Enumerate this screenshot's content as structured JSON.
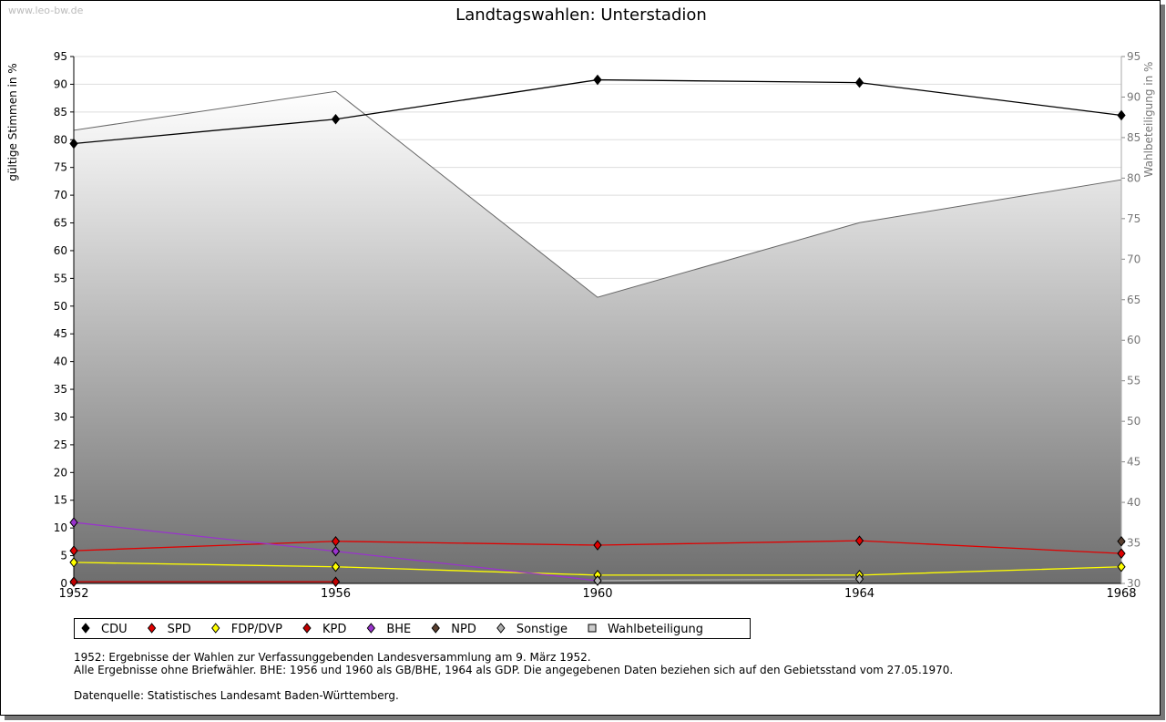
{
  "watermark": "www.leo-bw.de",
  "notes": [
    "1952: Ergebnisse der Wahlen zur Verfassunggebenden Landesversammlung am 9. März 1952.",
    "Alle Ergebnisse ohne Briefwähler. BHE: 1956 und 1960 als GB/BHE, 1964 als GDP. Die angegebenen Daten beziehen sich auf den Gebietsstand vom 27.05.1970.",
    "Datenquelle: Statistisches Landesamt Baden-Württemberg."
  ],
  "chart_data": {
    "type": "line",
    "title": "Landtagswahlen: Unterstadion",
    "ylabel": "gültige Stimmen in %",
    "y2label": "Wahlbeteiligung in %",
    "ylim": [
      0,
      95
    ],
    "y2lim": [
      30,
      95
    ],
    "yticks": [
      0,
      5,
      10,
      15,
      20,
      25,
      30,
      35,
      40,
      45,
      50,
      55,
      60,
      65,
      70,
      75,
      80,
      85,
      90,
      95
    ],
    "y2ticks": [
      30,
      35,
      40,
      45,
      50,
      55,
      60,
      65,
      70,
      75,
      80,
      85,
      90,
      95
    ],
    "x": [
      1952,
      1956,
      1960,
      1964,
      1968
    ],
    "series": [
      {
        "name": "CDU",
        "color": "#000000",
        "values": [
          79.3,
          83.7,
          90.8,
          90.3,
          84.4
        ]
      },
      {
        "name": "SPD",
        "color": "#e00000",
        "values": [
          5.9,
          7.6,
          6.9,
          7.7,
          5.4
        ]
      },
      {
        "name": "FDP/DVP",
        "color": "#ffff00",
        "values": [
          3.8,
          3.0,
          1.5,
          1.5,
          3.0
        ]
      },
      {
        "name": "KPD",
        "color": "#c00000",
        "values": [
          0.3,
          0.3,
          null,
          null,
          null
        ]
      },
      {
        "name": "BHE",
        "color": "#9933cc",
        "values": [
          11.0,
          5.8,
          0.5,
          null,
          null
        ]
      },
      {
        "name": "NPD",
        "color": "#5a4030",
        "values": [
          null,
          null,
          null,
          null,
          7.6
        ]
      },
      {
        "name": "Sonstige",
        "color": "#b0b0b0",
        "values": [
          null,
          null,
          0.5,
          0.8,
          null
        ]
      }
    ],
    "area": {
      "name": "Wahlbeteiligung",
      "color": "#cccccc",
      "axis": "right",
      "values": [
        85.9,
        90.7,
        65.3,
        74.5,
        79.8
      ]
    }
  }
}
